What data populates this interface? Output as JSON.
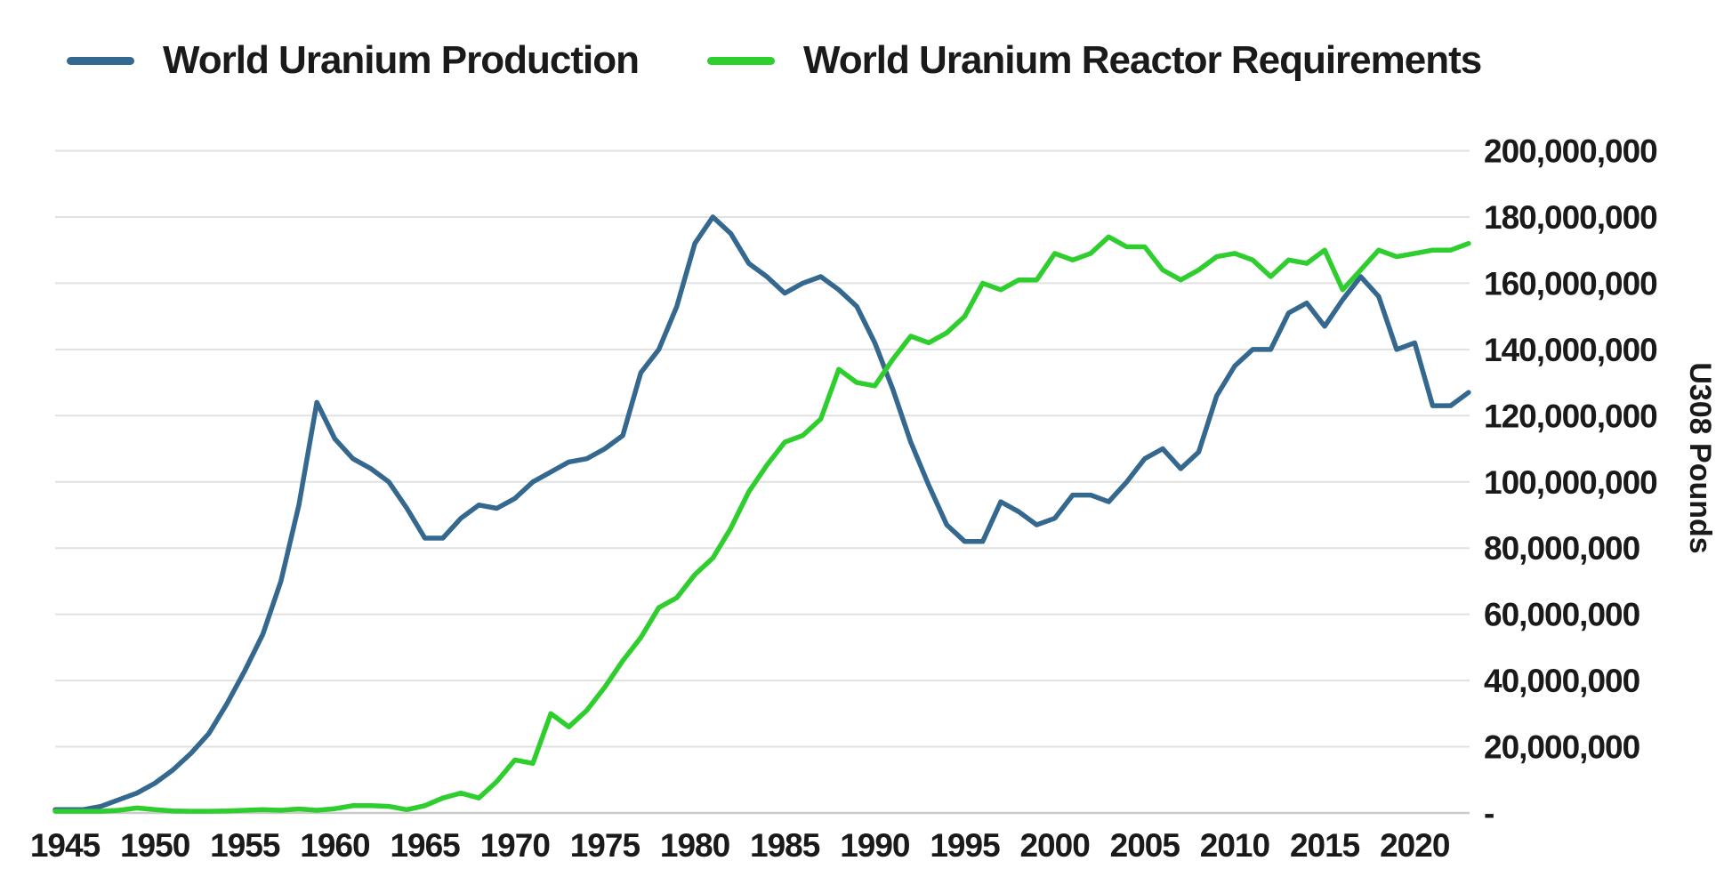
{
  "legend": {
    "items": [
      {
        "label": "World Uranium Production",
        "color": "#35688E"
      },
      {
        "label": "World Uranium Reactor Requirements",
        "color": "#2FCE2F"
      }
    ]
  },
  "axes": {
    "y_axis_title": "U308 Pounds",
    "y_tick_labels": [
      "200,000,000",
      "180,000,000",
      "160,000,000",
      "140,000,000",
      "120,000,000",
      "100,000,000",
      "80,000,000",
      "60,000,000",
      "40,000,000",
      "20,000,000",
      "-"
    ],
    "x_tick_labels": [
      "1945",
      "1950",
      "1955",
      "1960",
      "1965",
      "1970",
      "1975",
      "1980",
      "1985",
      "1990",
      "1995",
      "2000",
      "2005",
      "2010",
      "2015",
      "2020"
    ]
  },
  "colors": {
    "production_line": "#35688E",
    "requirements_line": "#2FCE2F",
    "gridline": "#E1E1E1",
    "axis_line": "#CBCBCB",
    "text": "#1A1A1A",
    "background": "#FFFFFF"
  },
  "chart_data": {
    "type": "line",
    "title": "",
    "xlabel": "",
    "ylabel": "U308 Pounds",
    "ylim": [
      0,
      200000000
    ],
    "y_tick_interval": 20000000,
    "grid": true,
    "legend_position": "top-left",
    "x_range": [
      1945,
      2023
    ],
    "x": [
      1945,
      1946,
      1947,
      1948,
      1949,
      1950,
      1951,
      1952,
      1953,
      1954,
      1955,
      1956,
      1957,
      1958,
      1959,
      1960,
      1961,
      1962,
      1963,
      1964,
      1965,
      1966,
      1967,
      1968,
      1969,
      1970,
      1971,
      1972,
      1973,
      1974,
      1975,
      1976,
      1977,
      1978,
      1979,
      1980,
      1981,
      1982,
      1983,
      1984,
      1985,
      1986,
      1987,
      1988,
      1989,
      1990,
      1991,
      1992,
      1993,
      1994,
      1995,
      1996,
      1997,
      1998,
      1999,
      2000,
      2001,
      2002,
      2003,
      2004,
      2005,
      2006,
      2007,
      2008,
      2009,
      2010,
      2011,
      2012,
      2013,
      2014,
      2015,
      2016,
      2017,
      2018,
      2019,
      2020,
      2021,
      2022,
      2023
    ],
    "series": [
      {
        "name": "World Uranium Production",
        "color": "#35688E",
        "values": [
          1000000,
          1000000,
          2000000,
          4000000,
          6000000,
          9000000,
          13000000,
          18000000,
          24000000,
          33000000,
          43000000,
          54000000,
          70000000,
          93000000,
          124000000,
          113000000,
          107000000,
          104000000,
          100000000,
          92000000,
          83000000,
          83000000,
          89000000,
          93000000,
          92000000,
          95000000,
          100000000,
          103000000,
          106000000,
          107000000,
          110000000,
          114000000,
          133000000,
          140000000,
          153000000,
          172000000,
          180000000,
          175000000,
          166000000,
          162000000,
          157000000,
          160000000,
          162000000,
          158000000,
          153000000,
          142000000,
          128000000,
          112000000,
          99000000,
          87000000,
          82000000,
          82000000,
          94000000,
          91000000,
          87000000,
          89000000,
          96000000,
          96000000,
          94000000,
          100000000,
          107000000,
          110000000,
          104000000,
          109000000,
          126000000,
          135000000,
          140000000,
          140000000,
          151000000,
          154000000,
          147000000,
          155000000,
          162000000,
          156000000,
          140000000,
          142000000,
          123000000,
          123000000,
          127000000
        ]
      },
      {
        "name": "World Uranium Reactor Requirements",
        "color": "#2FCE2F",
        "values": [
          500000,
          500000,
          500000,
          800000,
          1500000,
          1000000,
          600000,
          500000,
          500000,
          600000,
          800000,
          1000000,
          800000,
          1200000,
          800000,
          1300000,
          2200000,
          2200000,
          2000000,
          1000000,
          2200000,
          4500000,
          6000000,
          4500000,
          9500000,
          16000000,
          15000000,
          30000000,
          26000000,
          31000000,
          38000000,
          46000000,
          53000000,
          62000000,
          65000000,
          72000000,
          77000000,
          86000000,
          97000000,
          105000000,
          112000000,
          114000000,
          119000000,
          134000000,
          130000000,
          129000000,
          137000000,
          144000000,
          142000000,
          145000000,
          150000000,
          160000000,
          158000000,
          161000000,
          161000000,
          169000000,
          167000000,
          169000000,
          174000000,
          171000000,
          171000000,
          164000000,
          161000000,
          164000000,
          168000000,
          169000000,
          167000000,
          162000000,
          167000000,
          166000000,
          170000000,
          158000000,
          164000000,
          170000000,
          168000000,
          169000000,
          170000000,
          170000000,
          172000000
        ]
      }
    ]
  }
}
